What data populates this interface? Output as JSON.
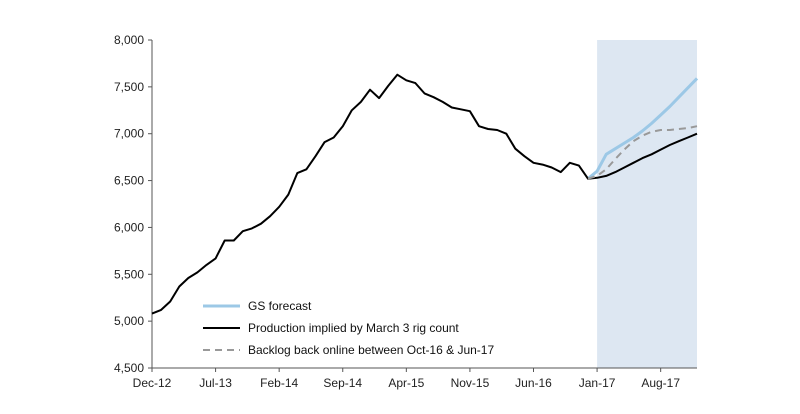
{
  "chart_data": {
    "type": "line",
    "title": "",
    "xlabel": "",
    "ylabel": "",
    "ylim": [
      4500,
      8000
    ],
    "y_ticks": [
      "4,500",
      "5,000",
      "5,500",
      "6,000",
      "6,500",
      "7,000",
      "7,500",
      "8,000"
    ],
    "y_tick_values": [
      4500,
      5000,
      5500,
      6000,
      6500,
      7000,
      7500,
      8000
    ],
    "x_ticks": [
      "Dec-12",
      "Jul-13",
      "Feb-14",
      "Sep-14",
      "Apr-15",
      "Nov-15",
      "Jun-16",
      "Jan-17",
      "Aug-17"
    ],
    "x_tick_dates": [
      "2012-12",
      "2013-07",
      "2014-02",
      "2014-09",
      "2015-04",
      "2015-11",
      "2016-06",
      "2017-01",
      "2017-08"
    ],
    "xlim": [
      "2012-12",
      "2017-12"
    ],
    "forecast_shading": {
      "start": "2017-01",
      "end": "2017-12",
      "color": "#dde7f2"
    },
    "legend_position": "bottom-left",
    "series": [
      {
        "name": "GS forecast",
        "color": "#9cc8e6",
        "style": "solid",
        "x": [
          "2016-12",
          "2017-01",
          "2017-02",
          "2017-03",
          "2017-04",
          "2017-05",
          "2017-06",
          "2017-07",
          "2017-08",
          "2017-09",
          "2017-10",
          "2017-11",
          "2017-12"
        ],
        "values": [
          6520,
          6600,
          6780,
          6840,
          6900,
          6960,
          7030,
          7110,
          7200,
          7290,
          7390,
          7490,
          7590
        ]
      },
      {
        "name": "Production implied by March 3 rig count",
        "color": "#000000",
        "style": "solid",
        "x": [
          "2012-12",
          "2013-01",
          "2013-02",
          "2013-03",
          "2013-04",
          "2013-05",
          "2013-06",
          "2013-07",
          "2013-08",
          "2013-09",
          "2013-10",
          "2013-11",
          "2013-12",
          "2014-01",
          "2014-02",
          "2014-03",
          "2014-04",
          "2014-05",
          "2014-06",
          "2014-07",
          "2014-08",
          "2014-09",
          "2014-10",
          "2014-11",
          "2014-12",
          "2015-01",
          "2015-02",
          "2015-03",
          "2015-04",
          "2015-05",
          "2015-06",
          "2015-07",
          "2015-08",
          "2015-09",
          "2015-10",
          "2015-11",
          "2015-12",
          "2016-01",
          "2016-02",
          "2016-03",
          "2016-04",
          "2016-05",
          "2016-06",
          "2016-07",
          "2016-08",
          "2016-09",
          "2016-10",
          "2016-11",
          "2016-12",
          "2017-01",
          "2017-02",
          "2017-03",
          "2017-04",
          "2017-05",
          "2017-06",
          "2017-07",
          "2017-08",
          "2017-09",
          "2017-10",
          "2017-11",
          "2017-12"
        ],
        "values": [
          5080,
          5120,
          5210,
          5370,
          5460,
          5520,
          5600,
          5670,
          5860,
          5860,
          5960,
          5990,
          6040,
          6120,
          6220,
          6350,
          6580,
          6620,
          6760,
          6910,
          6960,
          7080,
          7250,
          7340,
          7470,
          7380,
          7510,
          7630,
          7570,
          7540,
          7430,
          7390,
          7340,
          7280,
          7260,
          7240,
          7080,
          7050,
          7040,
          7000,
          6840,
          6760,
          6690,
          6670,
          6640,
          6590,
          6690,
          6660,
          6520,
          6530,
          6550,
          6590,
          6640,
          6690,
          6740,
          6780,
          6830,
          6880,
          6920,
          6960,
          7000
        ]
      },
      {
        "name": "Backlog back online between Oct-16 & Jun-17",
        "color": "#999999",
        "style": "dashed",
        "x": [
          "2016-12",
          "2017-01",
          "2017-02",
          "2017-03",
          "2017-04",
          "2017-05",
          "2017-06",
          "2017-07",
          "2017-08",
          "2017-09",
          "2017-10",
          "2017-11",
          "2017-12"
        ],
        "values": [
          6520,
          6550,
          6620,
          6730,
          6830,
          6920,
          6980,
          7020,
          7040,
          7040,
          7050,
          7060,
          7080
        ]
      }
    ]
  }
}
